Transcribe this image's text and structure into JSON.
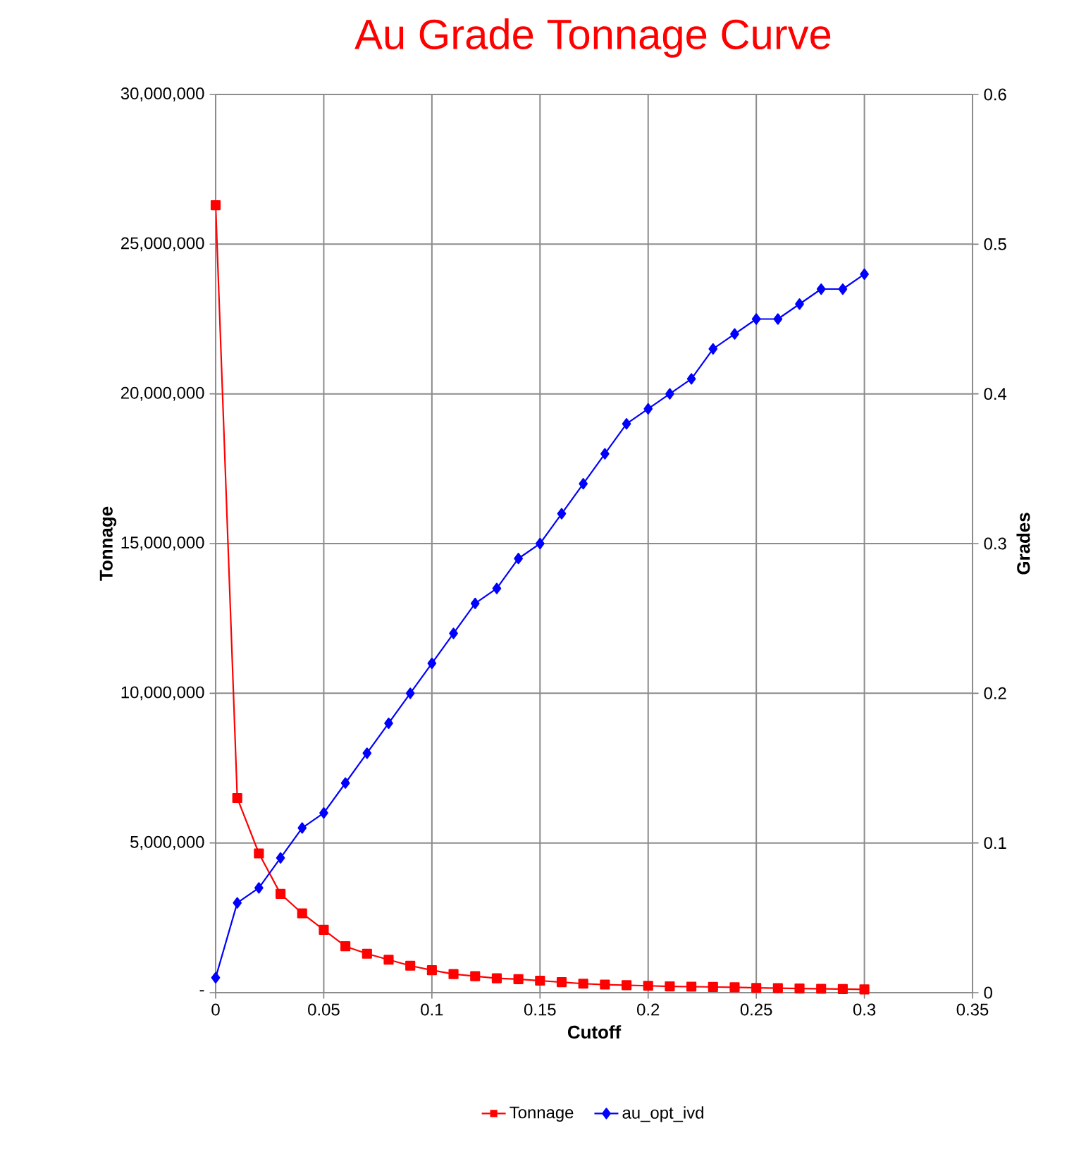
{
  "chart_data": {
    "type": "line",
    "title": "Au Grade Tonnage Curve",
    "xlabel": "Cutoff",
    "ylabel": "Tonnage",
    "y2label": "Grades",
    "x": [
      0,
      0.01,
      0.02,
      0.03,
      0.04,
      0.05,
      0.06,
      0.07,
      0.08,
      0.09,
      0.1,
      0.11,
      0.12,
      0.13,
      0.14,
      0.15,
      0.16,
      0.17,
      0.18,
      0.19,
      0.2,
      0.21,
      0.22,
      0.23,
      0.24,
      0.25,
      0.26,
      0.27,
      0.28,
      0.29,
      0.3
    ],
    "series": [
      {
        "name": "Tonnage",
        "color": "#ff0000",
        "marker": "square",
        "values": [
          26300000,
          6500000,
          4650000,
          3300000,
          2650000,
          2100000,
          1550000,
          1300000,
          1100000,
          900000,
          750000,
          620000,
          550000,
          480000,
          450000,
          400000,
          350000,
          300000,
          270000,
          250000,
          230000,
          210000,
          200000,
          190000,
          180000,
          160000,
          150000,
          140000,
          130000,
          120000,
          110000
        ]
      },
      {
        "name": "au_opt_ivd",
        "color": "#0000ff",
        "marker": "diamond",
        "axis": "y2",
        "values": [
          0.01,
          0.06,
          0.07,
          0.09,
          0.11,
          0.12,
          0.14,
          0.16,
          0.18,
          0.2,
          0.22,
          0.24,
          0.26,
          0.27,
          0.29,
          0.3,
          0.32,
          0.34,
          0.36,
          0.38,
          0.39,
          0.4,
          0.41,
          0.43,
          0.44,
          0.45,
          0.45,
          0.46,
          0.47,
          0.47,
          0.48
        ]
      }
    ],
    "xlim": [
      0,
      0.35
    ],
    "xticks": [
      0,
      0.05,
      0.1,
      0.15,
      0.2,
      0.25,
      0.3,
      0.35
    ],
    "ylim": [
      0,
      30000000
    ],
    "yticks": [
      {
        "value": 0,
        "label": "-"
      },
      {
        "value": 5000000,
        "label": "5,000,000"
      },
      {
        "value": 10000000,
        "label": "10,000,000"
      },
      {
        "value": 15000000,
        "label": "15,000,000"
      },
      {
        "value": 20000000,
        "label": "20,000,000"
      },
      {
        "value": 25000000,
        "label": "25,000,000"
      },
      {
        "value": 30000000,
        "label": "30,000,000"
      }
    ],
    "y2lim": [
      0,
      0.6
    ],
    "y2ticks": [
      0,
      0.1,
      0.2,
      0.3,
      0.4,
      0.5,
      0.6
    ],
    "grid": true,
    "legend": "bottom",
    "line_style": "solid"
  }
}
